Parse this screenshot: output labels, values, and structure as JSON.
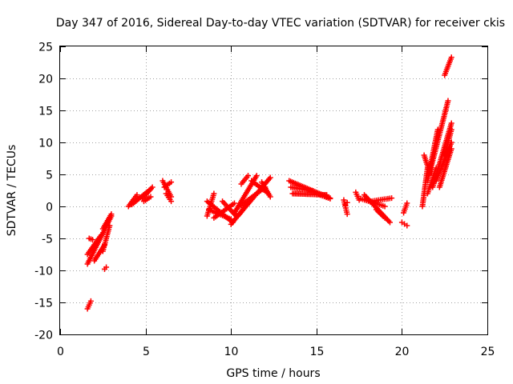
{
  "chart_data": {
    "type": "scatter",
    "title": "Day 347 of 2016, Sidereal Day-to-day VTEC variation (SDTVAR) for receiver ckis",
    "xlabel": "GPS time / hours",
    "ylabel": "SDTVAR / TECUs",
    "xlim": [
      0,
      25
    ],
    "ylim": [
      -20,
      25
    ],
    "xticks": [
      0,
      5,
      10,
      15,
      20,
      25
    ],
    "yticks": [
      -20,
      -15,
      -10,
      -5,
      0,
      5,
      10,
      15,
      20,
      25
    ],
    "xtick_labels": [
      "0",
      "5",
      "10",
      "15",
      "20",
      "25"
    ],
    "ytick_labels": [
      "-20",
      "-15",
      "-10",
      "-5",
      "0",
      "5",
      "10",
      "15",
      "20",
      "25"
    ],
    "grid": true,
    "marker": "+",
    "color": "#ff0000",
    "segments": [
      {
        "x0": 1.6,
        "y0": -16.0,
        "x1": 1.8,
        "y1": -14.8,
        "n": 5
      },
      {
        "x0": 1.6,
        "y0": -7.5,
        "x1": 2.4,
        "y1": -4.5,
        "n": 10
      },
      {
        "x0": 1.6,
        "y0": -9.0,
        "x1": 3.0,
        "y1": -1.5,
        "n": 18
      },
      {
        "x0": 1.7,
        "y0": -5.0,
        "x1": 1.9,
        "y1": -5.2,
        "n": 3
      },
      {
        "x0": 2.0,
        "y0": -8.5,
        "x1": 2.6,
        "y1": -6.0,
        "n": 8
      },
      {
        "x0": 2.5,
        "y0": -3.5,
        "x1": 3.0,
        "y1": -1.2,
        "n": 7
      },
      {
        "x0": 2.6,
        "y0": -9.8,
        "x1": 2.7,
        "y1": -9.5,
        "n": 2
      },
      {
        "x0": 2.5,
        "y0": -7.0,
        "x1": 2.9,
        "y1": -3.0,
        "n": 6
      },
      {
        "x0": 4.0,
        "y0": 0.0,
        "x1": 4.5,
        "y1": 1.8,
        "n": 7
      },
      {
        "x0": 4.2,
        "y0": 0.3,
        "x1": 5.2,
        "y1": 2.5,
        "n": 10
      },
      {
        "x0": 4.8,
        "y0": 1.2,
        "x1": 5.4,
        "y1": 3.0,
        "n": 7
      },
      {
        "x0": 4.9,
        "y0": 0.8,
        "x1": 5.3,
        "y1": 1.5,
        "n": 4
      },
      {
        "x0": 6.0,
        "y0": 4.0,
        "x1": 6.5,
        "y1": 1.5,
        "n": 8
      },
      {
        "x0": 6.1,
        "y0": 3.0,
        "x1": 6.5,
        "y1": 3.8,
        "n": 5
      },
      {
        "x0": 6.2,
        "y0": 2.0,
        "x1": 6.5,
        "y1": 0.8,
        "n": 4
      },
      {
        "x0": 8.6,
        "y0": -1.5,
        "x1": 9.0,
        "y1": 2.0,
        "n": 6
      },
      {
        "x0": 8.6,
        "y0": 0.8,
        "x1": 10.1,
        "y1": -2.5,
        "n": 18
      },
      {
        "x0": 8.7,
        "y0": -0.5,
        "x1": 10.0,
        "y1": -2.0,
        "n": 14
      },
      {
        "x0": 9.0,
        "y0": -1.8,
        "x1": 10.2,
        "y1": 0.5,
        "n": 12
      },
      {
        "x0": 9.5,
        "y0": 0.8,
        "x1": 10.3,
        "y1": -1.5,
        "n": 10
      },
      {
        "x0": 10.0,
        "y0": -2.8,
        "x1": 11.0,
        "y1": 0.5,
        "n": 12
      },
      {
        "x0": 10.2,
        "y0": -1.0,
        "x1": 11.5,
        "y1": 4.8,
        "n": 16
      },
      {
        "x0": 10.4,
        "y0": -1.5,
        "x1": 12.3,
        "y1": 4.5,
        "n": 22
      },
      {
        "x0": 10.5,
        "y0": 0.0,
        "x1": 12.0,
        "y1": 3.0,
        "n": 16
      },
      {
        "x0": 10.6,
        "y0": 3.5,
        "x1": 11.0,
        "y1": 4.8,
        "n": 5
      },
      {
        "x0": 11.2,
        "y0": 4.0,
        "x1": 12.1,
        "y1": 2.2,
        "n": 10
      },
      {
        "x0": 11.8,
        "y0": 3.8,
        "x1": 12.3,
        "y1": 1.5,
        "n": 6
      },
      {
        "x0": 13.4,
        "y0": 4.0,
        "x1": 15.8,
        "y1": 1.3,
        "n": 28
      },
      {
        "x0": 13.6,
        "y0": 2.0,
        "x1": 15.6,
        "y1": 1.8,
        "n": 24
      },
      {
        "x0": 13.5,
        "y0": 3.0,
        "x1": 14.8,
        "y1": 2.4,
        "n": 14
      },
      {
        "x0": 15.0,
        "y0": 2.0,
        "x1": 15.8,
        "y1": 1.2,
        "n": 8
      },
      {
        "x0": 16.6,
        "y0": 1.0,
        "x1": 16.8,
        "y1": -1.2,
        "n": 5
      },
      {
        "x0": 16.7,
        "y0": 0.2,
        "x1": 16.8,
        "y1": 0.6,
        "n": 2
      },
      {
        "x0": 17.3,
        "y0": 2.2,
        "x1": 17.5,
        "y1": 1.0,
        "n": 3
      },
      {
        "x0": 17.8,
        "y0": 1.8,
        "x1": 19.3,
        "y1": -2.5,
        "n": 18
      },
      {
        "x0": 17.6,
        "y0": 1.2,
        "x1": 19.0,
        "y1": 0.0,
        "n": 14
      },
      {
        "x0": 18.2,
        "y0": 0.8,
        "x1": 19.4,
        "y1": 1.3,
        "n": 12
      },
      {
        "x0": 18.5,
        "y0": -0.5,
        "x1": 19.0,
        "y1": -1.8,
        "n": 5
      },
      {
        "x0": 20.0,
        "y0": -2.5,
        "x1": 20.3,
        "y1": -3.0,
        "n": 3
      },
      {
        "x0": 20.1,
        "y0": -1.0,
        "x1": 20.3,
        "y1": 0.5,
        "n": 3
      },
      {
        "x0": 21.2,
        "y0": 0.0,
        "x1": 21.5,
        "y1": 6.0,
        "n": 7
      },
      {
        "x0": 21.3,
        "y0": 8.0,
        "x1": 21.6,
        "y1": 5.5,
        "n": 4
      },
      {
        "x0": 21.5,
        "y0": 4.0,
        "x1": 22.1,
        "y1": 12.0,
        "n": 9
      },
      {
        "x0": 21.5,
        "y0": 2.0,
        "x1": 22.0,
        "y1": 6.0,
        "n": 6
      },
      {
        "x0": 21.6,
        "y0": 5.0,
        "x1": 22.7,
        "y1": 16.5,
        "n": 14
      },
      {
        "x0": 21.8,
        "y0": 3.0,
        "x1": 22.9,
        "y1": 13.0,
        "n": 12
      },
      {
        "x0": 22.0,
        "y0": 4.0,
        "x1": 22.9,
        "y1": 10.0,
        "n": 10
      },
      {
        "x0": 22.2,
        "y0": 3.0,
        "x1": 22.9,
        "y1": 9.0,
        "n": 8
      },
      {
        "x0": 22.5,
        "y0": 8.0,
        "x1": 22.9,
        "y1": 12.0,
        "n": 5
      },
      {
        "x0": 22.5,
        "y0": 20.5,
        "x1": 22.9,
        "y1": 23.3,
        "n": 6
      }
    ]
  }
}
